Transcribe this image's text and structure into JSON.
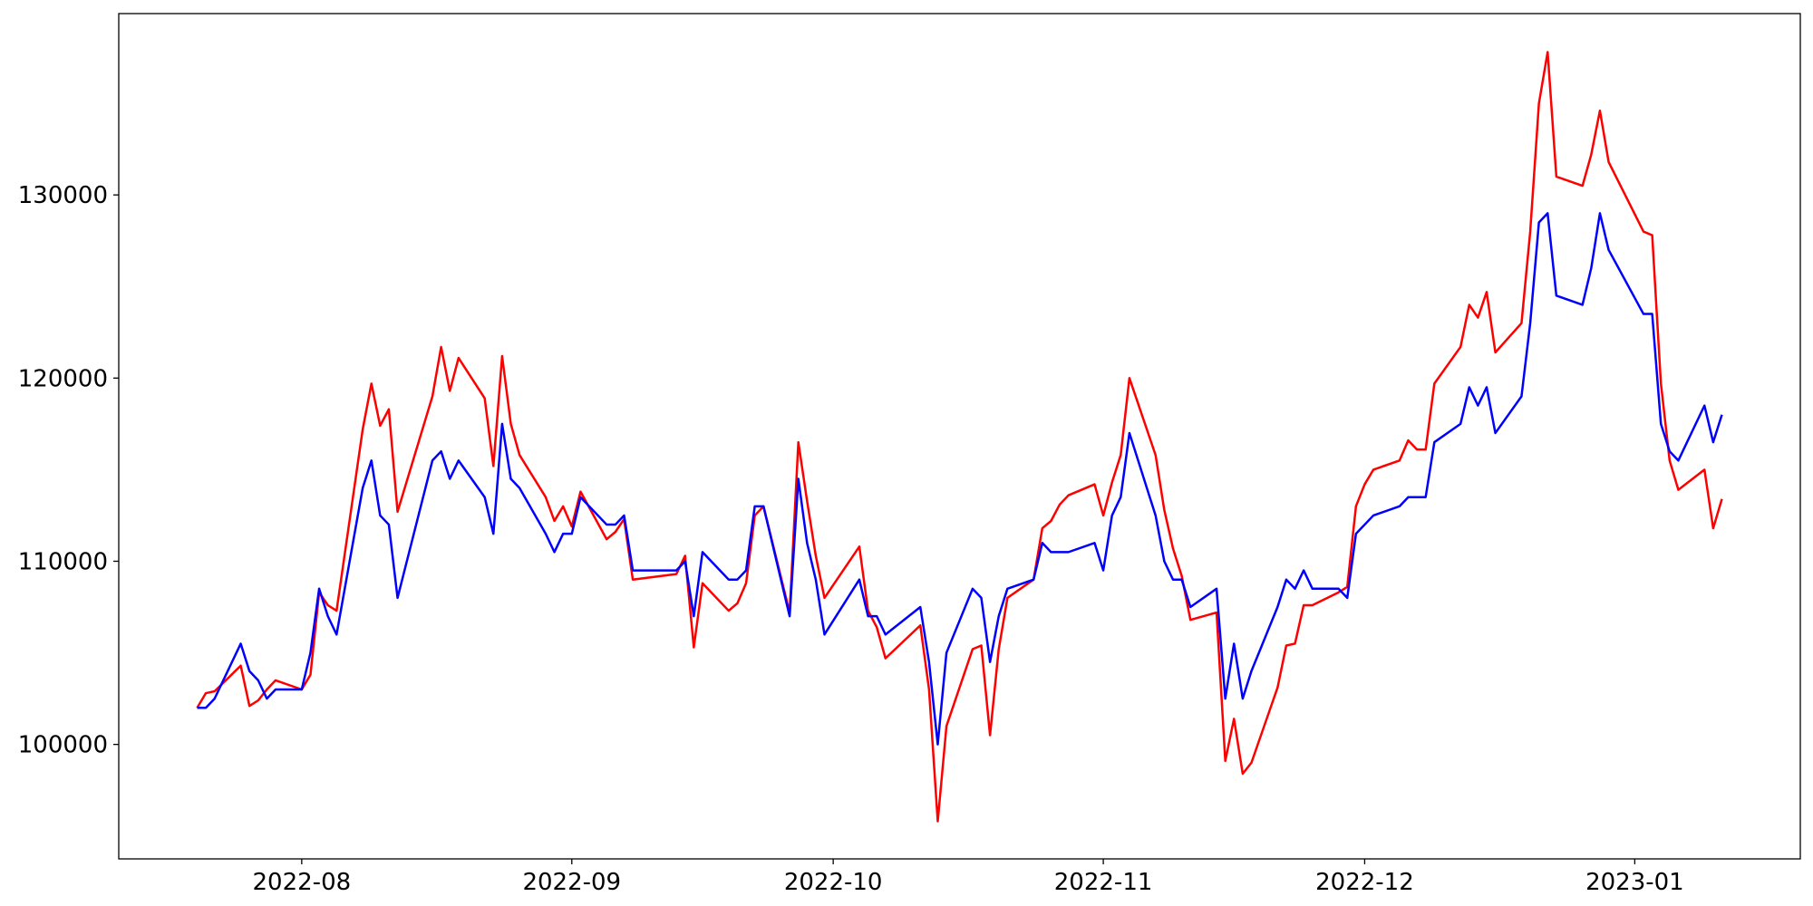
{
  "chart_data": {
    "type": "line",
    "x": [
      "2022-07-20",
      "2022-07-21",
      "2022-07-22",
      "2022-07-25",
      "2022-07-26",
      "2022-07-27",
      "2022-07-28",
      "2022-07-29",
      "2022-08-01",
      "2022-08-02",
      "2022-08-03",
      "2022-08-04",
      "2022-08-05",
      "2022-08-08",
      "2022-08-09",
      "2022-08-10",
      "2022-08-11",
      "2022-08-12",
      "2022-08-16",
      "2022-08-17",
      "2022-08-18",
      "2022-08-19",
      "2022-08-22",
      "2022-08-23",
      "2022-08-24",
      "2022-08-25",
      "2022-08-26",
      "2022-08-29",
      "2022-08-30",
      "2022-08-31",
      "2022-09-01",
      "2022-09-02",
      "2022-09-05",
      "2022-09-06",
      "2022-09-07",
      "2022-09-08",
      "2022-09-13",
      "2022-09-14",
      "2022-09-15",
      "2022-09-16",
      "2022-09-19",
      "2022-09-20",
      "2022-09-21",
      "2022-09-22",
      "2022-09-23",
      "2022-09-26",
      "2022-09-27",
      "2022-09-28",
      "2022-09-29",
      "2022-09-30",
      "2022-10-04",
      "2022-10-05",
      "2022-10-06",
      "2022-10-07",
      "2022-10-11",
      "2022-10-12",
      "2022-10-13",
      "2022-10-14",
      "2022-10-17",
      "2022-10-18",
      "2022-10-19",
      "2022-10-20",
      "2022-10-21",
      "2022-10-24",
      "2022-10-25",
      "2022-10-26",
      "2022-10-27",
      "2022-10-28",
      "2022-10-31",
      "2022-11-01",
      "2022-11-02",
      "2022-11-03",
      "2022-11-04",
      "2022-11-07",
      "2022-11-08",
      "2022-11-09",
      "2022-11-10",
      "2022-11-11",
      "2022-11-14",
      "2022-11-15",
      "2022-11-16",
      "2022-11-17",
      "2022-11-18",
      "2022-11-21",
      "2022-11-22",
      "2022-11-23",
      "2022-11-24",
      "2022-11-25",
      "2022-11-28",
      "2022-11-29",
      "2022-11-30",
      "2022-12-01",
      "2022-12-02",
      "2022-12-05",
      "2022-12-06",
      "2022-12-07",
      "2022-12-08",
      "2022-12-09",
      "2022-12-12",
      "2022-12-13",
      "2022-12-14",
      "2022-12-15",
      "2022-12-16",
      "2022-12-19",
      "2022-12-20",
      "2022-12-21",
      "2022-12-22",
      "2022-12-23",
      "2022-12-26",
      "2022-12-27",
      "2022-12-28",
      "2022-12-29",
      "2023-01-02",
      "2023-01-03",
      "2023-01-04",
      "2023-01-05",
      "2023-01-06",
      "2023-01-09",
      "2023-01-10",
      "2023-01-11"
    ],
    "series": [
      {
        "color": "#ff0000",
        "values": [
          102000,
          102800,
          102900,
          104300,
          102100,
          102400,
          103000,
          103500,
          103000,
          103800,
          108300,
          107600,
          107300,
          117200,
          119700,
          117400,
          118300,
          112700,
          119000,
          121700,
          119300,
          121100,
          118900,
          115200,
          121200,
          117500,
          115800,
          113500,
          112200,
          113000,
          111900,
          113800,
          111200,
          111600,
          112300,
          109000,
          109300,
          110300,
          105300,
          108800,
          107300,
          107700,
          108800,
          112500,
          113000,
          107200,
          116500,
          113300,
          110300,
          108000,
          110800,
          107300,
          106400,
          104700,
          106500,
          103000,
          95800,
          101000,
          105200,
          105400,
          100500,
          105200,
          108000,
          109000,
          111800,
          112200,
          113100,
          113600,
          114200,
          112500,
          114300,
          115800,
          120000,
          115800,
          112800,
          110700,
          109200,
          106800,
          107200,
          99100,
          101400,
          98400,
          99000,
          103100,
          105400,
          105500,
          107600,
          107600,
          108300,
          108600,
          113000,
          114200,
          115000,
          115500,
          116600,
          116100,
          116100,
          119700,
          121700,
          124000,
          123300,
          124700,
          121400,
          123000,
          128000,
          135000,
          137800,
          131000,
          130500,
          132200,
          134600,
          131800,
          128000,
          127800,
          119700,
          115500,
          113900,
          115000,
          111800,
          113400
        ]
      },
      {
        "color": "#0000ff",
        "values": [
          102000,
          102000,
          102500,
          105500,
          104000,
          103500,
          102500,
          103000,
          103000,
          105000,
          108500,
          107000,
          106000,
          114000,
          115500,
          112500,
          112000,
          108000,
          115500,
          116000,
          114500,
          115500,
          113500,
          111500,
          117500,
          114500,
          114000,
          111500,
          110500,
          111500,
          111500,
          113500,
          112000,
          112000,
          112500,
          109500,
          109500,
          110000,
          107000,
          110500,
          109000,
          109000,
          109500,
          113000,
          113000,
          107000,
          114500,
          111000,
          109000,
          106000,
          109000,
          107000,
          107000,
          106000,
          107500,
          104500,
          100000,
          105000,
          108500,
          108000,
          104500,
          107000,
          108500,
          109000,
          111000,
          110500,
          110500,
          110500,
          111000,
          109500,
          112500,
          113500,
          117000,
          112500,
          110000,
          109000,
          109000,
          107500,
          108500,
          102500,
          105500,
          102500,
          104000,
          107500,
          109000,
          108500,
          109500,
          108500,
          108500,
          108000,
          111500,
          112000,
          112500,
          113000,
          113500,
          113500,
          113500,
          116500,
          117500,
          119500,
          118500,
          119500,
          117000,
          119000,
          123000,
          128500,
          129000,
          124500,
          124000,
          126000,
          129000,
          127000,
          123500,
          123500,
          117500,
          116000,
          115500,
          118500,
          116500,
          118000
        ]
      }
    ],
    "xlim": [
      "2022-07-11",
      "2023-01-20"
    ],
    "xticks": [
      {
        "value": "2022-08-01",
        "label": "2022-08"
      },
      {
        "value": "2022-09-01",
        "label": "2022-09"
      },
      {
        "value": "2022-10-01",
        "label": "2022-10"
      },
      {
        "value": "2022-11-01",
        "label": "2022-11"
      },
      {
        "value": "2022-12-01",
        "label": "2022-12"
      },
      {
        "value": "2023-01-01",
        "label": "2023-01"
      }
    ],
    "ylim": [
      93750,
      139900
    ],
    "yticks": [
      100000,
      110000,
      120000,
      130000
    ],
    "grid": false
  }
}
